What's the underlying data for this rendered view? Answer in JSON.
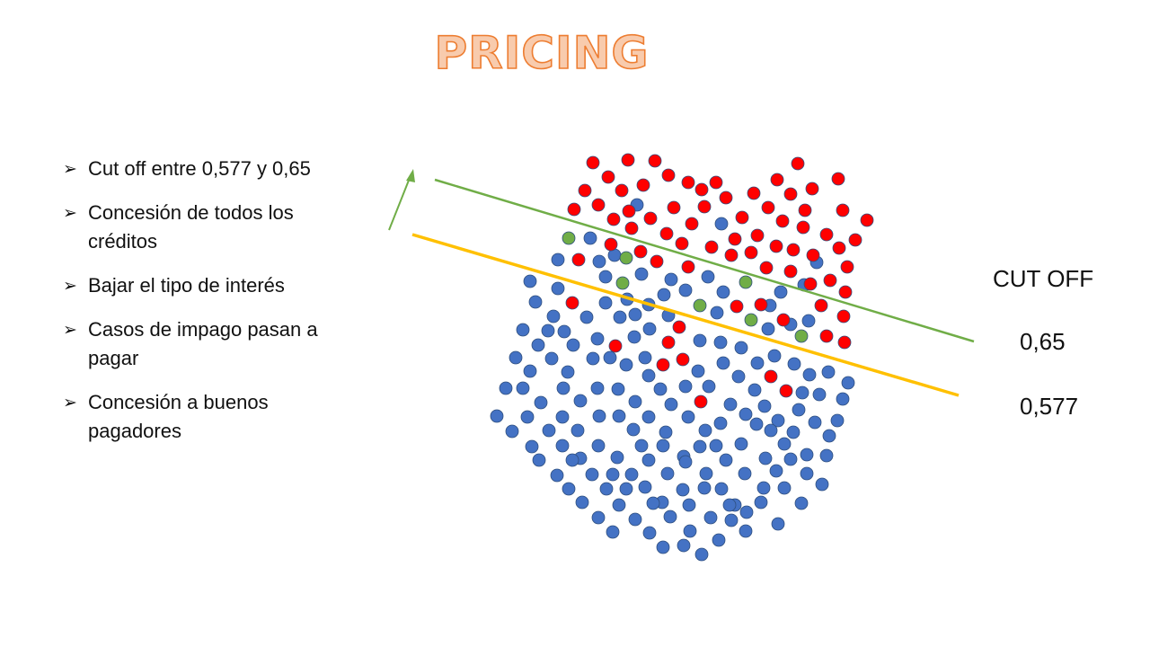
{
  "title": "PRICING",
  "bullets": [
    "Cut off entre 0,577 y 0,65",
    "Concesión de todos los créditos",
    "Bajar el tipo de interés",
    "Casos de impago pasan a pagar",
    "Concesión a buenos pagadores"
  ],
  "cutoff_label": "CUT OFF",
  "cutoff_values": [
    "0,65",
    "0,577"
  ],
  "colors": {
    "title_fill": "#f8cbad",
    "title_outline": "#ed7d31",
    "good": "#4472c4",
    "bad": "#ff0000",
    "recovered": "#70ad47",
    "line_high": "#70ad47",
    "line_low": "#ffc000",
    "arrow": "#70ad47"
  },
  "icons": {
    "bullet": "arrowhead-bullet-icon"
  }
}
